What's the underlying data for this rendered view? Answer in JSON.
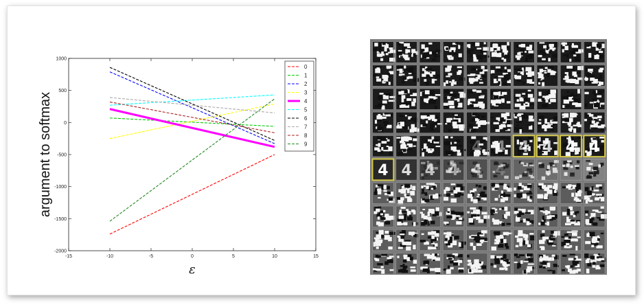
{
  "chart_data": {
    "type": "line",
    "title": "",
    "xlabel": "ε",
    "ylabel": "argument to softmax",
    "xlim": [
      -15,
      15
    ],
    "ylim": [
      -2000,
      1000
    ],
    "xticks": [
      "-15",
      "-10",
      "-5",
      "0",
      "5",
      "10",
      "15"
    ],
    "yticks": [
      "1000",
      "500",
      "0",
      "-500",
      "-1000",
      "-1500",
      "-2000"
    ],
    "x": [
      -10,
      10
    ],
    "legend_position": "top-right",
    "series": [
      {
        "name": "0",
        "values": [
          -1740,
          -500
        ],
        "color": "#ff0000",
        "dashed": true,
        "highlight": false
      },
      {
        "name": "1",
        "values": [
          70,
          -60
        ],
        "color": "#00cc00",
        "dashed": true,
        "highlight": false
      },
      {
        "name": "2",
        "values": [
          790,
          -330
        ],
        "color": "#0000ff",
        "dashed": true,
        "highlight": false
      },
      {
        "name": "3",
        "values": [
          -250,
          290
        ],
        "color": "#ffff00",
        "dashed": true,
        "highlight": false
      },
      {
        "name": "4",
        "values": [
          210,
          -380
        ],
        "color": "#ff00ff",
        "dashed": false,
        "highlight": true
      },
      {
        "name": "5",
        "values": [
          270,
          430
        ],
        "color": "#00ffff",
        "dashed": true,
        "highlight": false
      },
      {
        "name": "6",
        "values": [
          860,
          -280
        ],
        "color": "#000000",
        "dashed": true,
        "highlight": false
      },
      {
        "name": "7",
        "values": [
          390,
          150
        ],
        "color": "#aaaaaa",
        "dashed": true,
        "highlight": false
      },
      {
        "name": "8",
        "values": [
          320,
          -160
        ],
        "color": "#aa2222",
        "dashed": true,
        "highlight": false
      },
      {
        "name": "9",
        "values": [
          -1540,
          370
        ],
        "color": "#228822",
        "dashed": true,
        "highlight": false
      }
    ]
  },
  "image_grid": {
    "rows": 10,
    "cols": 10,
    "label": "4",
    "highlight_color": "#d4c84a",
    "highlighted_cells": [
      [
        4,
        6
      ],
      [
        4,
        7
      ],
      [
        4,
        8
      ],
      [
        4,
        9
      ],
      [
        5,
        0
      ]
    ]
  }
}
